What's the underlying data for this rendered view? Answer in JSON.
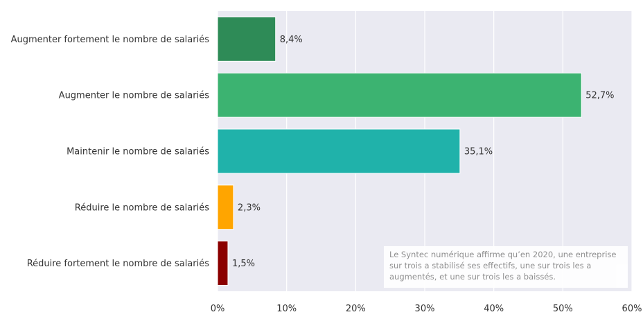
{
  "chart_data": {
    "type": "bar",
    "orientation": "horizontal",
    "categories": [
      "Augmenter fortement le nombre de salariés",
      "Augmenter le nombre de salariés",
      "Maintenir le nombre de salariés",
      "Réduire le nombre de salariés",
      "Réduire fortement le nombre de salariés"
    ],
    "values": [
      8.4,
      52.7,
      35.1,
      2.3,
      1.5
    ],
    "value_labels": [
      "8,4%",
      "52,7%",
      "35,1%",
      "2,3%",
      "1,5%"
    ],
    "colors": [
      "#2e8b57",
      "#3cb371",
      "#20b2aa",
      "#ffa500",
      "#8b0000"
    ],
    "xlim": [
      0,
      60
    ],
    "xticks": [
      0,
      10,
      20,
      30,
      40,
      50,
      60
    ],
    "xtick_labels": [
      "0%",
      "10%",
      "20%",
      "30%",
      "40%",
      "50%",
      "60%"
    ],
    "grid": true,
    "background_color": "#eaeaf2",
    "annotation": "Le Syntec numérique affirme qu’en 2020, une entreprise sur trois a stabilisé ses effectifs, une sur trois les a augmentés, et une sur trois les a baissés."
  }
}
